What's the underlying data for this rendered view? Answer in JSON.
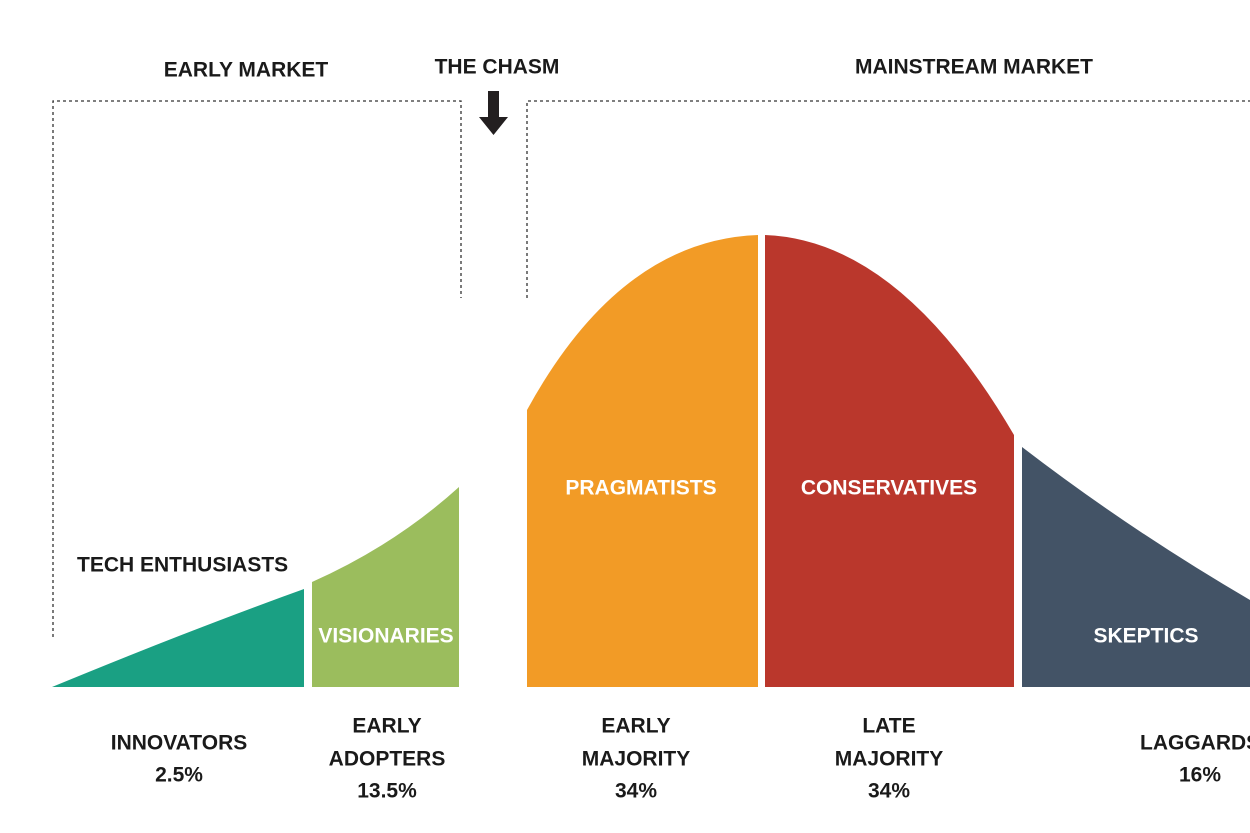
{
  "markets": [
    {
      "label": "EARLY MARKET"
    },
    {
      "label": "THE CHASM"
    },
    {
      "label": "MAINSTREAM MARKET"
    }
  ],
  "segments": [
    {
      "name": "TECH ENTHUSIASTS",
      "group": [
        "INNOVATORS"
      ],
      "share": "2.5%"
    },
    {
      "name": "VISIONARIES",
      "group": [
        "EARLY",
        "ADOPTERS"
      ],
      "share": "13.5%"
    },
    {
      "name": "PRAGMATISTS",
      "group": [
        "EARLY",
        "MAJORITY"
      ],
      "share": "34%"
    },
    {
      "name": "CONSERVATIVES",
      "group": [
        "LATE",
        "MAJORITY"
      ],
      "share": "34%"
    },
    {
      "name": "SKEPTICS",
      "group": [
        "LAGGARDS"
      ],
      "share": "16%"
    }
  ]
}
